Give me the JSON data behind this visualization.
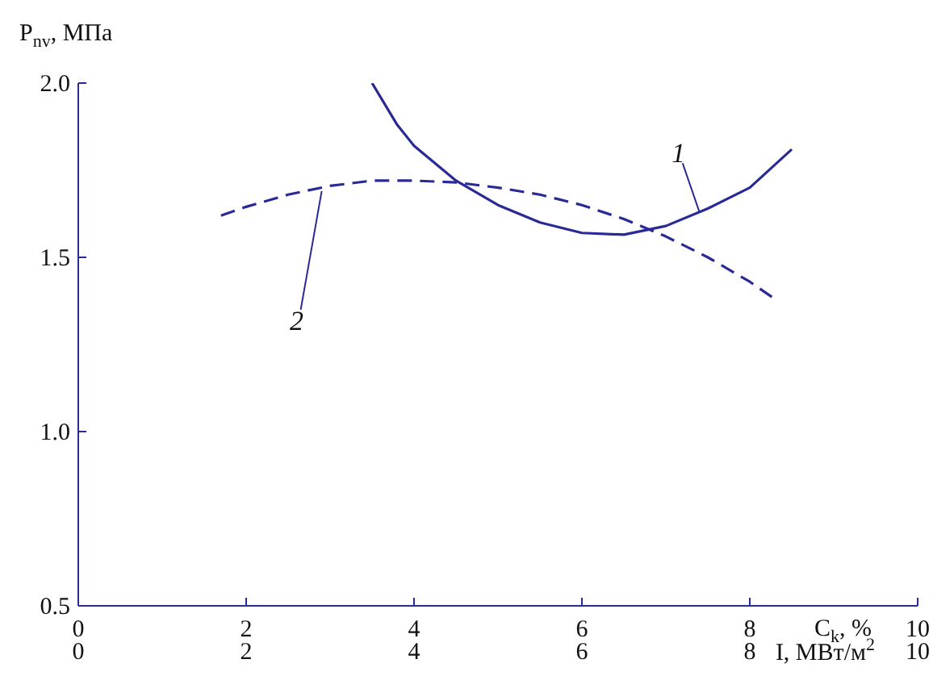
{
  "chart_data": {
    "type": "line",
    "ylabel": "P$_{nv}$, МПа",
    "xlabel": "C$_{k}$, %",
    "x2label": "I, МВт/м$^{2}$",
    "xlim": [
      0,
      10
    ],
    "xticks": [
      0,
      2,
      4,
      6,
      8,
      10
    ],
    "x2lim": [
      0,
      10
    ],
    "x2ticks": [
      0,
      2,
      4,
      6,
      8,
      10
    ],
    "ylim": [
      0.5,
      2.0
    ],
    "yticks": [
      {
        "value": 0.5,
        "label": "0.5"
      },
      {
        "value": 1,
        "label": "1.0"
      },
      {
        "value": 1.5,
        "label": "1.5"
      },
      {
        "value": 2,
        "label": "2.0"
      }
    ],
    "grid": false,
    "marker": "none",
    "series": [
      {
        "color": "#2a2a96",
        "line_style": "solid",
        "x": [
          3.5,
          3.8,
          4.0,
          4.5,
          5.0,
          5.5,
          6.0,
          6.5,
          7.0,
          7.5,
          8.0,
          8.5
        ],
        "values": [
          2.0,
          1.88,
          1.82,
          1.72,
          1.65,
          1.6,
          1.57,
          1.565,
          1.59,
          1.64,
          1.7,
          1.81
        ]
      },
      {
        "color": "#2a2a96",
        "line_style": "dashed",
        "x": [
          1.7,
          2.0,
          2.5,
          3.0,
          3.5,
          4.0,
          4.5,
          5.0,
          5.5,
          6.0,
          6.5,
          7.0,
          7.5,
          8.0,
          8.3
        ],
        "values": [
          1.62,
          1.645,
          1.68,
          1.705,
          1.72,
          1.72,
          1.715,
          1.7,
          1.68,
          1.65,
          1.61,
          1.56,
          1.5,
          1.43,
          1.38
        ]
      }
    ],
    "annotations": [
      {
        "text": "1",
        "x": 7.4,
        "y": 1.63
      },
      {
        "text": "2",
        "x": 2.9,
        "y": 1.69
      }
    ]
  }
}
